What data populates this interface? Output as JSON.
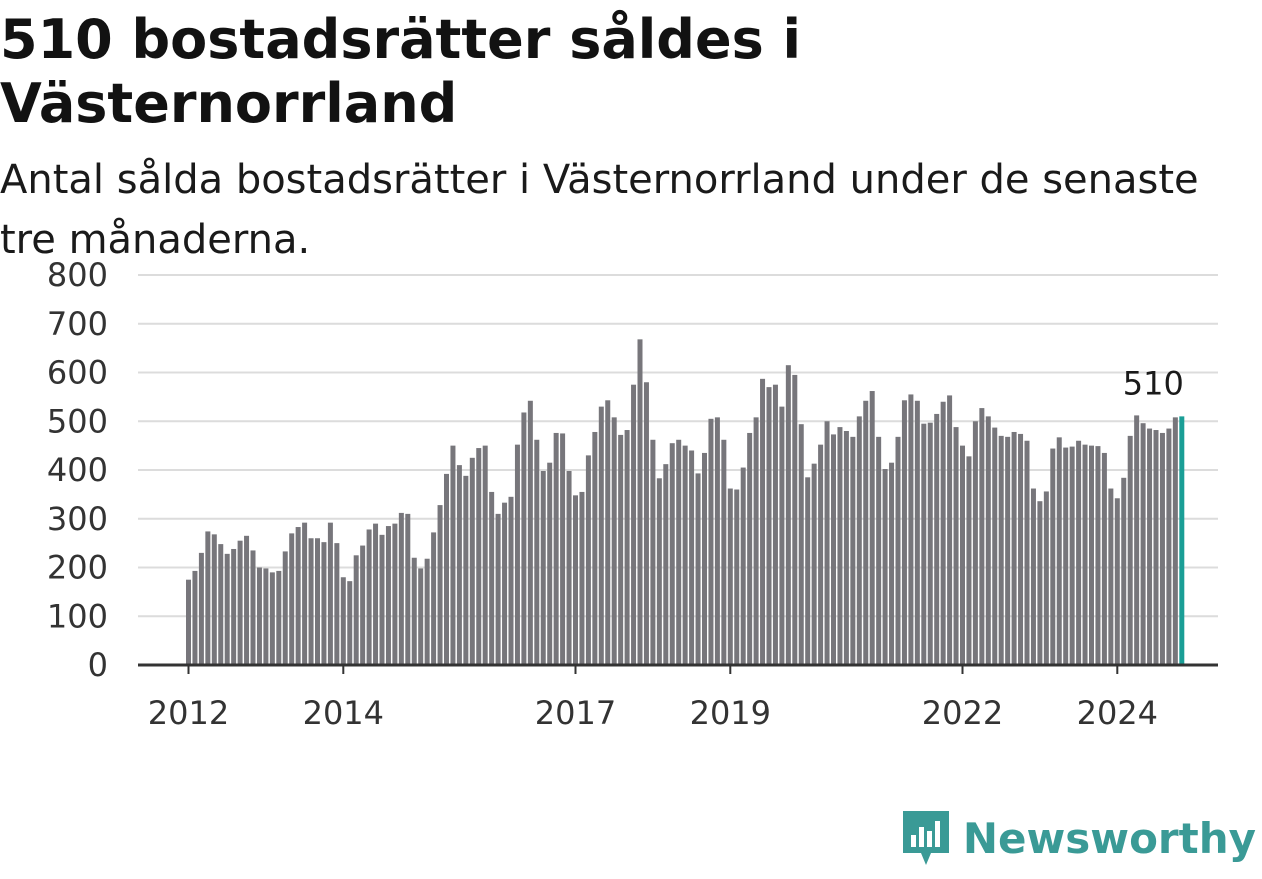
{
  "header": {
    "title": "510 bostadsrätter såldes i Västernorrland",
    "subtitle": "Antal sålda bostadsrätter i Västernorrland under de senaste tre månaderna."
  },
  "brand": {
    "name": "Newsworthy",
    "color": "#3a9a96"
  },
  "colors": {
    "bar": "#77767b",
    "highlight": "#1a9e96",
    "grid": "#dcdcdc",
    "axis": "#333333"
  },
  "chart_data": {
    "type": "bar",
    "title": "510 bostadsrätter såldes i Västernorrland",
    "subtitle": "Antal sålda bostadsrätter i Västernorrland under de senaste tre månaderna.",
    "xlabel": "",
    "ylabel": "",
    "ylim": [
      0,
      800
    ],
    "y_ticks": [
      0,
      100,
      200,
      300,
      400,
      500,
      600,
      700,
      800
    ],
    "x_ticks": [
      "2012",
      "2014",
      "2017",
      "2019",
      "2022",
      "2024"
    ],
    "grid": true,
    "legend": "none",
    "start": "2012-01",
    "frequency": "monthly",
    "highlight_label": "510",
    "values": [
      175,
      193,
      230,
      274,
      268,
      248,
      228,
      238,
      255,
      265,
      235,
      200,
      198,
      190,
      193,
      233,
      270,
      283,
      292,
      260,
      260,
      252,
      292,
      250,
      180,
      172,
      225,
      245,
      278,
      290,
      267,
      285,
      290,
      312,
      310,
      220,
      198,
      218,
      272,
      328,
      392,
      450,
      410,
      388,
      425,
      445,
      450,
      355,
      310,
      333,
      345,
      452,
      518,
      542,
      462,
      398,
      415,
      476,
      475,
      398,
      348,
      355,
      430,
      478,
      530,
      543,
      508,
      472,
      482,
      575,
      668,
      580,
      462,
      383,
      412,
      455,
      462,
      450,
      440,
      393,
      435,
      505,
      508,
      462,
      362,
      360,
      405,
      476,
      508,
      587,
      570,
      575,
      530,
      615,
      595,
      494,
      385,
      413,
      452,
      500,
      473,
      488,
      480,
      468,
      510,
      542,
      562,
      468,
      402,
      415,
      468,
      543,
      555,
      542,
      495,
      497,
      515,
      540,
      553,
      488,
      450,
      428,
      500,
      527,
      510,
      487,
      470,
      468,
      478,
      474,
      460,
      362,
      336,
      356,
      444,
      467,
      446,
      448,
      460,
      452,
      450,
      449,
      435,
      362,
      342,
      384,
      470,
      512,
      496,
      485,
      482,
      476,
      485,
      508,
      510
    ]
  }
}
